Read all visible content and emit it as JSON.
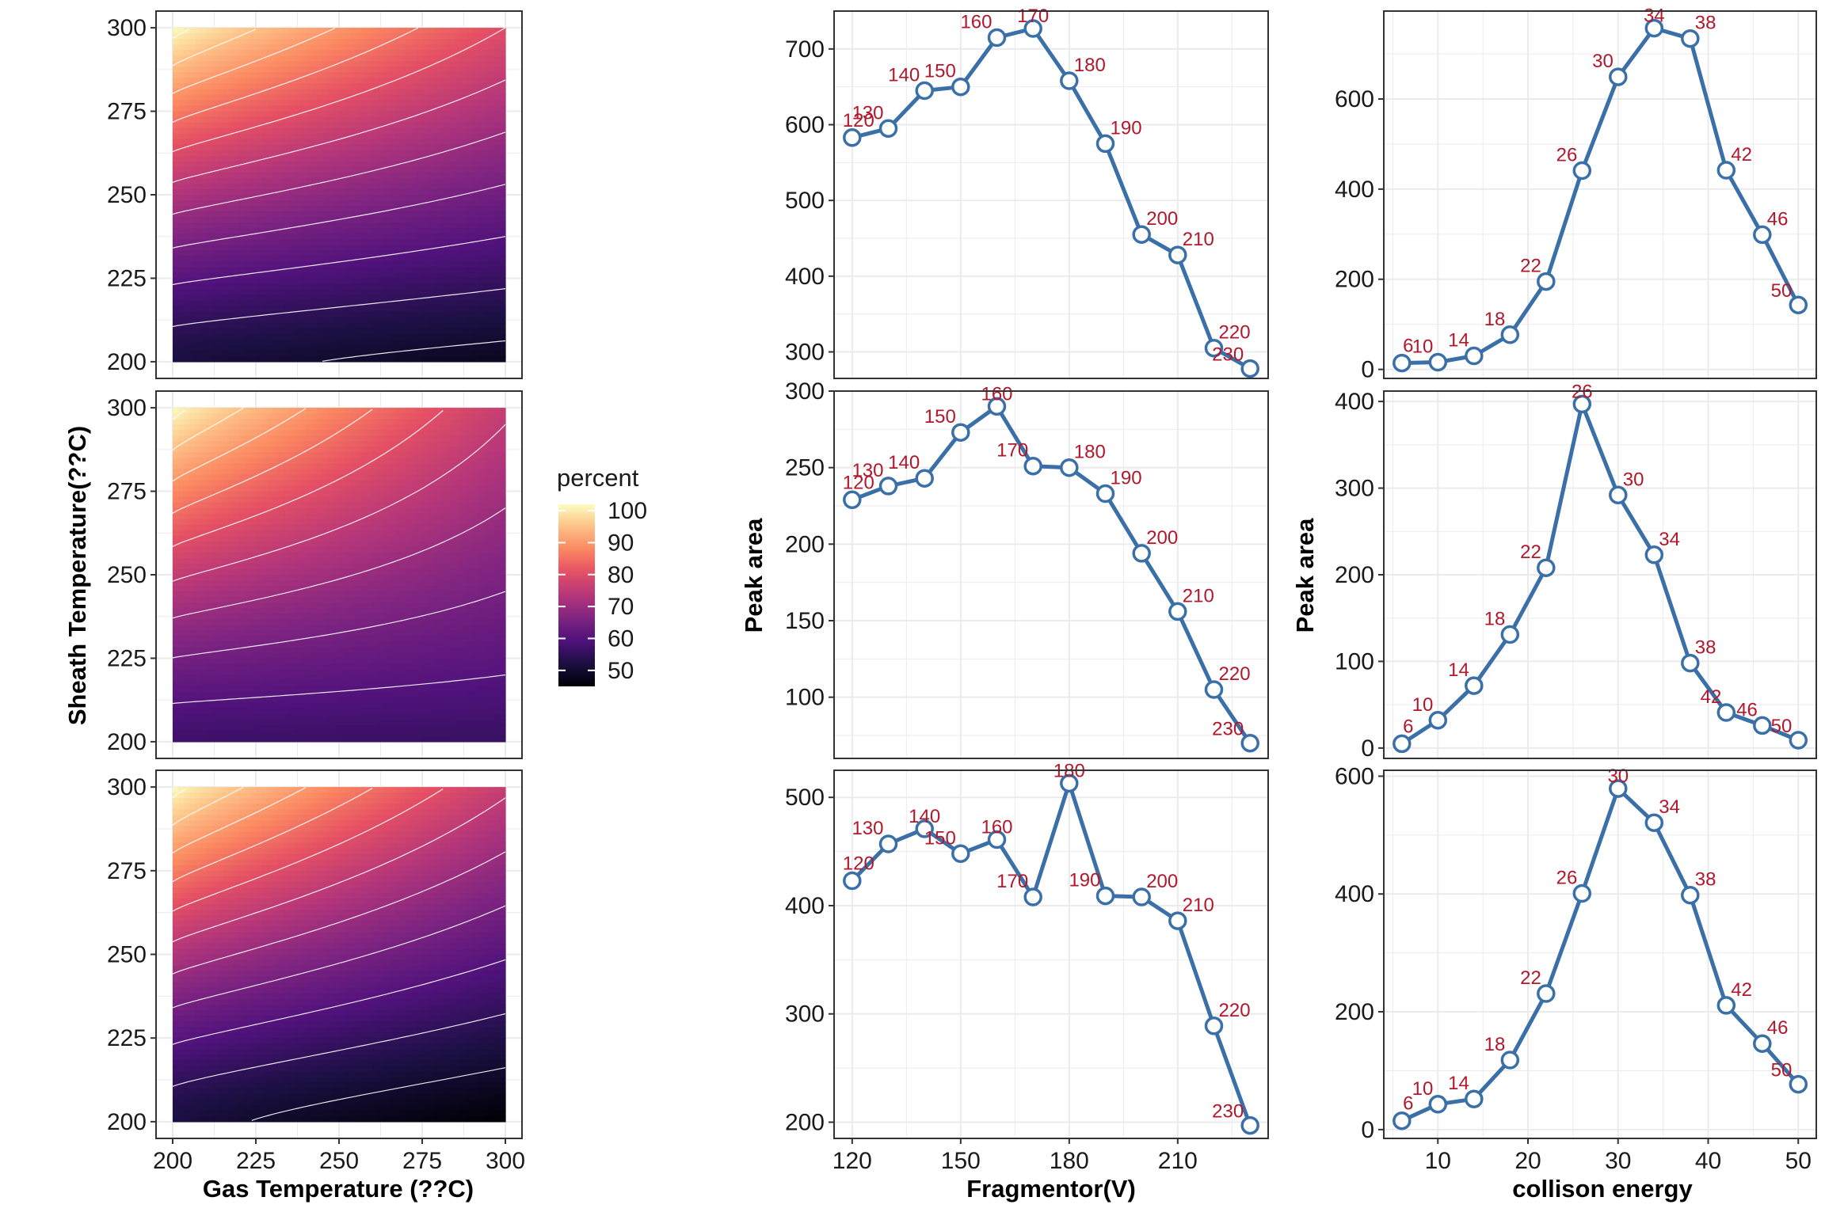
{
  "colors": {
    "line": "#3a6fa8",
    "point_fill": "#ffffff",
    "point_label": "#b2182b",
    "grid": "#ebebeb",
    "panel_border": "#333333",
    "contour": "#ffffff"
  },
  "shared_axes": {
    "contour_xlabel": "Gas Temperature (??C)",
    "contour_ylabel": "Sheath Temperature(??C)",
    "fragmentor_xlabel": "Fragmentor(V)",
    "collision_xlabel": "collison energy",
    "peak_ylabel": "Peak area"
  },
  "legend": {
    "title": "percent",
    "ticks": [
      "100",
      "90",
      "80",
      "70",
      "60",
      "50"
    ],
    "colormap": "magma",
    "range": [
      45,
      102
    ]
  },
  "chart_data": [
    {
      "id": "contour-top",
      "type": "heatmap",
      "xlabel": "",
      "ylabel": "",
      "xlim": [
        200,
        300
      ],
      "ylim": [
        200,
        300
      ],
      "xticks": [
        200,
        225,
        250,
        275,
        300
      ],
      "yticks": [
        200,
        225,
        250,
        275,
        300
      ],
      "grid": true,
      "corner_values": {
        "x200_y300": 102,
        "x300_y300": 80,
        "x200_y200": 52,
        "x300_y200": 48
      },
      "contour_interval": 5
    },
    {
      "id": "contour-middle",
      "type": "heatmap",
      "xlabel": "",
      "ylabel": "",
      "xlim": [
        200,
        300
      ],
      "ylim": [
        200,
        300
      ],
      "xticks": [
        200,
        225,
        250,
        275,
        300
      ],
      "yticks": [
        200,
        225,
        250,
        275,
        300
      ],
      "grid": true,
      "corner_values": {
        "x200_y300": 102,
        "x300_y300": 76,
        "x200_y200": 57,
        "x300_y200": 56
      },
      "contour_interval": 5
    },
    {
      "id": "contour-bottom",
      "type": "heatmap",
      "xlabel": "",
      "ylabel": "",
      "xlim": [
        200,
        300
      ],
      "ylim": [
        200,
        300
      ],
      "xticks": [
        200,
        225,
        250,
        275,
        300
      ],
      "yticks": [
        200,
        225,
        250,
        275,
        300
      ],
      "grid": true,
      "corner_values": {
        "x200_y300": 102,
        "x300_y300": 76,
        "x200_y200": 52,
        "x300_y200": 45
      },
      "contour_interval": 5
    },
    {
      "id": "fragmentor-top",
      "type": "line",
      "x": [
        120,
        130,
        140,
        150,
        160,
        170,
        180,
        190,
        200,
        210,
        220,
        230
      ],
      "y": [
        583,
        595,
        645,
        650,
        715,
        727,
        658,
        575,
        455,
        428,
        305,
        278
      ],
      "point_labels": [
        "120",
        "130",
        "140",
        "150",
        "160",
        "170",
        "180",
        "190",
        "200",
        "210",
        "220",
        "230"
      ],
      "xlim": [
        115,
        235
      ],
      "ylim": [
        265,
        750
      ],
      "xticks": [
        120,
        150,
        180,
        210
      ],
      "yticks": [
        300,
        400,
        500,
        600,
        700
      ],
      "grid": true
    },
    {
      "id": "fragmentor-middle",
      "type": "line",
      "x": [
        120,
        130,
        140,
        150,
        160,
        170,
        180,
        190,
        200,
        210,
        220,
        230
      ],
      "y": [
        229,
        238,
        243,
        273,
        290,
        251,
        250,
        233,
        194,
        156,
        105,
        70
      ],
      "point_labels": [
        "120",
        "130",
        "140",
        "150",
        "160",
        "170",
        "180",
        "190",
        "200",
        "210",
        "220",
        "230"
      ],
      "xlim": [
        115,
        235
      ],
      "ylim": [
        60,
        300
      ],
      "xticks": [
        120,
        150,
        180,
        210
      ],
      "yticks": [
        100,
        150,
        200,
        250,
        300
      ],
      "grid": true
    },
    {
      "id": "fragmentor-bottom",
      "type": "line",
      "x": [
        120,
        130,
        140,
        150,
        160,
        170,
        180,
        190,
        200,
        210,
        220,
        230
      ],
      "y": [
        423,
        457,
        471,
        448,
        461,
        408,
        513,
        409,
        408,
        386,
        289,
        197
      ],
      "point_labels": [
        "120",
        "130",
        "140",
        "150",
        "160",
        "170",
        "180",
        "190",
        "200",
        "210",
        "220",
        "230"
      ],
      "xlim": [
        115,
        235
      ],
      "ylim": [
        185,
        525
      ],
      "xticks": [
        120,
        150,
        180,
        210
      ],
      "yticks": [
        200,
        300,
        400,
        500
      ],
      "grid": true
    },
    {
      "id": "collision-top",
      "type": "line",
      "x": [
        6,
        10,
        14,
        18,
        22,
        26,
        30,
        34,
        38,
        42,
        46,
        50
      ],
      "y": [
        14,
        16,
        30,
        77,
        195,
        441,
        649,
        757,
        734,
        442,
        299,
        143
      ],
      "point_labels": [
        "6",
        "10",
        "14",
        "18",
        "22",
        "26",
        "30",
        "34",
        "38",
        "42",
        "46",
        "50"
      ],
      "xlim": [
        4,
        52
      ],
      "ylim": [
        -20,
        795
      ],
      "xticks": [
        10,
        20,
        30,
        40,
        50
      ],
      "yticks": [
        0,
        200,
        400,
        600
      ],
      "grid": true
    },
    {
      "id": "collision-middle",
      "type": "line",
      "x": [
        6,
        10,
        14,
        18,
        22,
        26,
        30,
        34,
        38,
        42,
        46,
        50
      ],
      "y": [
        5,
        32,
        72,
        131,
        208,
        397,
        292,
        223,
        98,
        41,
        26,
        9
      ],
      "point_labels": [
        "6",
        "10",
        "14",
        "18",
        "22",
        "26",
        "30",
        "34",
        "38",
        "42",
        "46",
        "50"
      ],
      "xlim": [
        4,
        52
      ],
      "ylim": [
        -12,
        412
      ],
      "xticks": [
        10,
        20,
        30,
        40,
        50
      ],
      "yticks": [
        0,
        100,
        200,
        300,
        400
      ],
      "grid": true
    },
    {
      "id": "collision-bottom",
      "type": "line",
      "x": [
        6,
        10,
        14,
        18,
        22,
        26,
        30,
        34,
        38,
        42,
        46,
        50
      ],
      "y": [
        15,
        43,
        52,
        118,
        231,
        401,
        579,
        521,
        398,
        211,
        146,
        77
      ],
      "point_labels": [
        "6",
        "10",
        "14",
        "18",
        "22",
        "26",
        "30",
        "34",
        "38",
        "42",
        "46",
        "50"
      ],
      "xlim": [
        4,
        52
      ],
      "ylim": [
        -15,
        610
      ],
      "xticks": [
        10,
        20,
        30,
        40,
        50
      ],
      "yticks": [
        0,
        200,
        400,
        600
      ],
      "grid": true
    }
  ]
}
